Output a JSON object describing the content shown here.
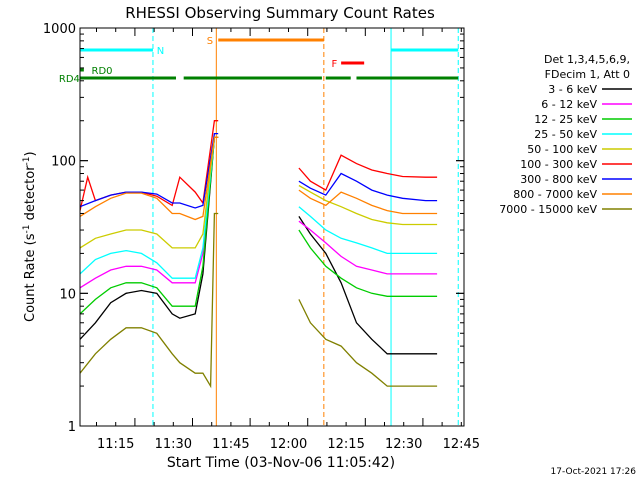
{
  "chart_data": {
    "type": "line",
    "title": "RHESSI Observing Summary Count Rates",
    "xlabel": "Start Time (03-Nov-06 11:05:42)",
    "ylabel_main": "Count Rate (s",
    "ylabel_sup": "-1",
    "ylabel_mid": " detector",
    "ylabel_sup2": "-1",
    "ylabel_end": ")",
    "yscale": "log",
    "ylim": [
      1,
      1000
    ],
    "xlim": [
      0,
      100
    ],
    "x_ticks": [
      {
        "label": "11:15",
        "x": 9.3
      },
      {
        "label": "11:30",
        "x": 24.3
      },
      {
        "label": "11:45",
        "x": 39.3
      },
      {
        "label": "12:00",
        "x": 54.3
      },
      {
        "label": "12:15",
        "x": 69.3
      },
      {
        "label": "12:30",
        "x": 84.3
      },
      {
        "label": "12:45",
        "x": 99.3
      }
    ],
    "y_ticks": [
      {
        "label": "1",
        "v": 1
      },
      {
        "label": "10",
        "v": 10
      },
      {
        "label": "100",
        "v": 100
      },
      {
        "label": "1000",
        "v": 1000
      }
    ],
    "legend": {
      "header": [
        "Det 1,3,4,5,6,9,",
        "FDecim 1, Att 0"
      ],
      "placement": "right"
    },
    "series": [
      {
        "name": "3 - 6 keV",
        "color": "#000000",
        "points": [
          [
            0,
            4.5
          ],
          [
            4,
            6
          ],
          [
            8,
            8.5
          ],
          [
            12,
            10
          ],
          [
            16,
            10.5
          ],
          [
            20,
            10
          ],
          [
            24,
            7
          ],
          [
            26,
            6.5
          ],
          [
            30,
            7
          ],
          [
            32,
            14
          ],
          [
            35,
            150
          ],
          [
            36,
            150
          ],
          [
            50,
            null
          ],
          [
            57,
            38
          ],
          [
            60,
            28
          ],
          [
            64,
            20
          ],
          [
            68,
            12
          ],
          [
            72,
            6
          ],
          [
            76,
            4.5
          ],
          [
            80,
            3.5
          ],
          [
            84,
            3.5
          ],
          [
            90,
            3.5
          ],
          [
            93,
            3.5
          ]
        ]
      },
      {
        "name": "6 - 12 keV",
        "color": "#ff00ff",
        "points": [
          [
            0,
            11
          ],
          [
            4,
            13
          ],
          [
            8,
            15
          ],
          [
            12,
            16
          ],
          [
            16,
            16
          ],
          [
            20,
            15
          ],
          [
            24,
            12
          ],
          [
            26,
            12
          ],
          [
            30,
            12
          ],
          [
            32,
            20
          ],
          [
            35,
            150
          ],
          [
            36,
            150
          ],
          [
            50,
            null
          ],
          [
            57,
            35
          ],
          [
            60,
            30
          ],
          [
            64,
            24
          ],
          [
            68,
            19
          ],
          [
            72,
            16
          ],
          [
            76,
            15
          ],
          [
            80,
            14
          ],
          [
            84,
            14
          ],
          [
            90,
            14
          ],
          [
            93,
            14
          ]
        ]
      },
      {
        "name": "12 - 25 keV",
        "color": "#00cc00",
        "points": [
          [
            0,
            7
          ],
          [
            4,
            9
          ],
          [
            8,
            11
          ],
          [
            12,
            12
          ],
          [
            16,
            12
          ],
          [
            20,
            11
          ],
          [
            24,
            8
          ],
          [
            26,
            8
          ],
          [
            30,
            8
          ],
          [
            32,
            16
          ],
          [
            35,
            150
          ],
          [
            36,
            150
          ],
          [
            50,
            null
          ],
          [
            57,
            30
          ],
          [
            60,
            22
          ],
          [
            64,
            16
          ],
          [
            68,
            13
          ],
          [
            72,
            11
          ],
          [
            76,
            10
          ],
          [
            80,
            9.5
          ],
          [
            84,
            9.5
          ],
          [
            90,
            9.5
          ],
          [
            93,
            9.5
          ]
        ]
      },
      {
        "name": "25 - 50 keV",
        "color": "#00ffff",
        "points": [
          [
            0,
            14
          ],
          [
            4,
            18
          ],
          [
            8,
            20
          ],
          [
            12,
            21
          ],
          [
            16,
            20
          ],
          [
            20,
            17
          ],
          [
            24,
            13
          ],
          [
            26,
            13
          ],
          [
            30,
            13
          ],
          [
            32,
            22
          ],
          [
            35,
            150
          ],
          [
            36,
            150
          ],
          [
            50,
            null
          ],
          [
            57,
            45
          ],
          [
            60,
            38
          ],
          [
            64,
            30
          ],
          [
            68,
            26
          ],
          [
            72,
            24
          ],
          [
            76,
            22
          ],
          [
            80,
            20
          ],
          [
            84,
            20
          ],
          [
            90,
            20
          ],
          [
            93,
            20
          ]
        ]
      },
      {
        "name": "50 - 100 keV",
        "color": "#cccc00",
        "points": [
          [
            0,
            22
          ],
          [
            4,
            26
          ],
          [
            8,
            28
          ],
          [
            12,
            30
          ],
          [
            16,
            30
          ],
          [
            20,
            28
          ],
          [
            24,
            22
          ],
          [
            26,
            22
          ],
          [
            30,
            22
          ],
          [
            32,
            28
          ],
          [
            35,
            150
          ],
          [
            36,
            150
          ],
          [
            50,
            null
          ],
          [
            57,
            65
          ],
          [
            60,
            58
          ],
          [
            64,
            50
          ],
          [
            68,
            45
          ],
          [
            72,
            40
          ],
          [
            76,
            36
          ],
          [
            80,
            34
          ],
          [
            84,
            33
          ],
          [
            90,
            33
          ],
          [
            93,
            33
          ]
        ]
      },
      {
        "name": "100 - 300 keV",
        "color": "#ff0000",
        "points": [
          [
            0,
            42
          ],
          [
            2,
            75
          ],
          [
            4,
            50
          ],
          [
            8,
            55
          ],
          [
            12,
            58
          ],
          [
            16,
            58
          ],
          [
            20,
            54
          ],
          [
            24,
            46
          ],
          [
            26,
            75
          ],
          [
            30,
            58
          ],
          [
            32,
            48
          ],
          [
            35,
            200
          ],
          [
            36,
            200
          ],
          [
            50,
            null
          ],
          [
            57,
            88
          ],
          [
            60,
            70
          ],
          [
            64,
            60
          ],
          [
            68,
            110
          ],
          [
            72,
            95
          ],
          [
            76,
            85
          ],
          [
            80,
            80
          ],
          [
            84,
            76
          ],
          [
            90,
            75
          ],
          [
            93,
            75
          ]
        ]
      },
      {
        "name": "300 - 800 keV",
        "color": "#0000ff",
        "points": [
          [
            0,
            45
          ],
          [
            4,
            50
          ],
          [
            8,
            55
          ],
          [
            12,
            58
          ],
          [
            16,
            58
          ],
          [
            20,
            56
          ],
          [
            24,
            48
          ],
          [
            26,
            48
          ],
          [
            30,
            44
          ],
          [
            32,
            46
          ],
          [
            35,
            160
          ],
          [
            36,
            160
          ],
          [
            50,
            null
          ],
          [
            57,
            70
          ],
          [
            60,
            62
          ],
          [
            64,
            55
          ],
          [
            68,
            80
          ],
          [
            72,
            70
          ],
          [
            76,
            60
          ],
          [
            80,
            55
          ],
          [
            84,
            52
          ],
          [
            90,
            50
          ],
          [
            93,
            50
          ]
        ]
      },
      {
        "name": "800 - 7000 keV",
        "color": "#ff8000",
        "points": [
          [
            0,
            38
          ],
          [
            4,
            45
          ],
          [
            8,
            52
          ],
          [
            12,
            57
          ],
          [
            16,
            57
          ],
          [
            20,
            52
          ],
          [
            24,
            40
          ],
          [
            26,
            40
          ],
          [
            30,
            36
          ],
          [
            32,
            38
          ],
          [
            35,
            150
          ],
          [
            36,
            150
          ],
          [
            50,
            null
          ],
          [
            57,
            60
          ],
          [
            60,
            52
          ],
          [
            64,
            46
          ],
          [
            68,
            58
          ],
          [
            72,
            52
          ],
          [
            76,
            46
          ],
          [
            80,
            42
          ],
          [
            84,
            40
          ],
          [
            90,
            40
          ],
          [
            93,
            40
          ]
        ]
      },
      {
        "name": "7000 - 15000 keV",
        "color": "#808000",
        "points": [
          [
            0,
            2.5
          ],
          [
            4,
            3.5
          ],
          [
            8,
            4.5
          ],
          [
            12,
            5.5
          ],
          [
            16,
            5.5
          ],
          [
            20,
            5
          ],
          [
            24,
            3.5
          ],
          [
            26,
            3
          ],
          [
            30,
            2.5
          ],
          [
            32,
            2.5
          ],
          [
            34,
            2
          ],
          [
            35,
            40
          ],
          [
            36,
            40
          ],
          [
            50,
            null
          ],
          [
            57,
            9
          ],
          [
            60,
            6
          ],
          [
            64,
            4.5
          ],
          [
            68,
            4
          ],
          [
            72,
            3
          ],
          [
            76,
            2.5
          ],
          [
            80,
            2
          ],
          [
            84,
            2
          ],
          [
            90,
            2
          ],
          [
            93,
            2
          ]
        ]
      }
    ],
    "vlines": [
      {
        "x": 0,
        "color": "#00ffff",
        "style": "solid"
      },
      {
        "x": 19,
        "color": "#00ffff",
        "style": "dashed"
      },
      {
        "x": 35.5,
        "color": "#ff8000",
        "style": "solid"
      },
      {
        "x": 63.5,
        "color": "#ff8000",
        "style": "dashed"
      },
      {
        "x": 81,
        "color": "#00ffff",
        "style": "solid"
      },
      {
        "x": 98.5,
        "color": "#00ffff",
        "style": "dashed"
      }
    ],
    "flags": [
      {
        "label": "N",
        "color": "#00ffff",
        "segments": [
          [
            0,
            19
          ],
          [
            81,
            98.5
          ]
        ],
        "level": 1,
        "label_x": 20
      },
      {
        "label": "S",
        "color": "#ff8000",
        "segments": [
          [
            36,
            63.5
          ]
        ],
        "level": 0,
        "label_x": 33
      },
      {
        "label": "F",
        "color": "#ff0000",
        "segments": [
          [
            68,
            74
          ]
        ],
        "level": 2.3,
        "label_x": 65.5
      },
      {
        "label": "RD0",
        "color": "#008000",
        "segments": [
          [
            0,
            1
          ]
        ],
        "level": 3,
        "label_x": 3
      },
      {
        "label": "RD4",
        "color": "#008000",
        "segments": [
          [
            0,
            25
          ],
          [
            27,
            63
          ],
          [
            64,
            70.5
          ],
          [
            72,
            98.5
          ]
        ],
        "level": 3.8,
        "label_x": -5.5
      }
    ]
  },
  "footer_date": "17-Oct-2021 17:26"
}
